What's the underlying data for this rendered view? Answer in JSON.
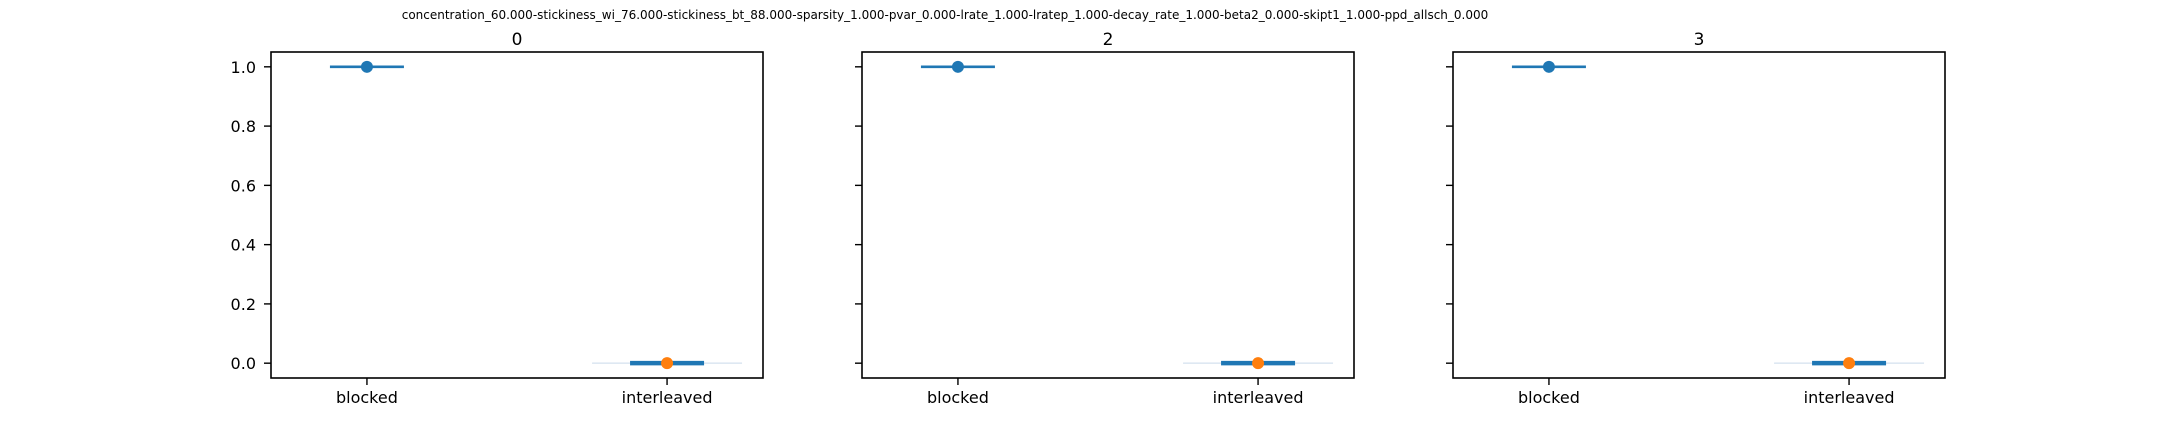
{
  "colors": {
    "blocked": "#1f77b4",
    "interleaved_line": "#1f77b4",
    "interleaved_marker": "#ff7f0e",
    "axes": "#000000",
    "background": "#ffffff"
  },
  "chart_data": {
    "type": "box",
    "suptitle": "concentration_60.000-stickiness_wi_76.000-stickiness_bt_88.000-sparsity_1.000-pvar_0.000-lrate_1.000-lratep_1.000-decay_rate_1.000-beta2_0.000-skipt1_1.000-ppd_allsch_0.000",
    "ylim": [
      -0.05,
      1.05
    ],
    "yticks": [
      0.0,
      0.2,
      0.4,
      0.6,
      0.8,
      1.0
    ],
    "ytick_labels": [
      "0.0",
      "0.2",
      "0.4",
      "0.6",
      "0.8",
      "1.0"
    ],
    "categories": [
      "blocked",
      "interleaved"
    ],
    "grid": false,
    "panels": [
      {
        "title": "0",
        "series": [
          {
            "category": "blocked",
            "median": 1.0,
            "whisker_low": 1.0,
            "whisker_high": 1.0,
            "marker": 1.0
          },
          {
            "category": "interleaved",
            "median": 0.0,
            "whisker_low": 0.0,
            "whisker_high": 0.0,
            "marker": 0.0
          }
        ]
      },
      {
        "title": "2",
        "series": [
          {
            "category": "blocked",
            "median": 1.0,
            "whisker_low": 1.0,
            "whisker_high": 1.0,
            "marker": 1.0
          },
          {
            "category": "interleaved",
            "median": 0.0,
            "whisker_low": 0.0,
            "whisker_high": 0.0,
            "marker": 0.0
          }
        ]
      },
      {
        "title": "3",
        "series": [
          {
            "category": "blocked",
            "median": 1.0,
            "whisker_low": 1.0,
            "whisker_high": 1.0,
            "marker": 1.0
          },
          {
            "category": "interleaved",
            "median": 0.0,
            "whisker_low": 0.0,
            "whisker_high": 0.0,
            "marker": 0.0
          }
        ]
      }
    ]
  }
}
